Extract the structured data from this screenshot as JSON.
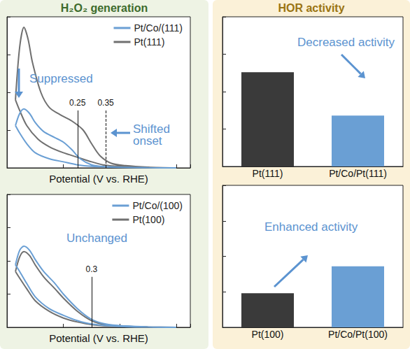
{
  "headers": [
    "H₂O₂ generation",
    "HOR activity"
  ],
  "chart_data": [
    {
      "type": "line",
      "xlabel": "Potential (V vs. RHE)",
      "xlim": [
        0,
        0.65
      ],
      "xticks": [
        0,
        0.2,
        0.4,
        0.6
      ],
      "ylim": [
        0,
        1
      ],
      "yticks": [
        0,
        0.25,
        0.5,
        0.75,
        1
      ],
      "tick_labels": false,
      "grid": false,
      "legend": "upper right",
      "series": [
        {
          "name": "Pt/Co/(111)",
          "color": "#6a9fd4",
          "x": [
            0.03,
            0.045,
            0.06,
            0.08,
            0.1,
            0.13,
            0.17,
            0.2,
            0.23,
            0.26,
            0.3,
            0.35,
            0.42,
            0.5,
            0.6,
            0.5,
            0.4,
            0.3,
            0.25,
            0.2,
            0.15,
            0.1,
            0.07,
            0.045,
            0.03
          ],
          "values": [
            0.28,
            0.36,
            0.39,
            0.36,
            0.3,
            0.24,
            0.2,
            0.17,
            0.12,
            0.06,
            0.02,
            0.008,
            0.003,
            0.001,
            0,
            0.001,
            0.003,
            0.01,
            0.02,
            0.04,
            0.06,
            0.1,
            0.16,
            0.23,
            0.28
          ]
        },
        {
          "name": "Pt(111)",
          "color": "#707070",
          "x": [
            0.03,
            0.045,
            0.06,
            0.075,
            0.09,
            0.12,
            0.15,
            0.19,
            0.23,
            0.27,
            0.3,
            0.33,
            0.37,
            0.42,
            0.5,
            0.6,
            0.5,
            0.4,
            0.34,
            0.3,
            0.25,
            0.2,
            0.15,
            0.11,
            0.07,
            0.045,
            0.03
          ],
          "values": [
            0.45,
            0.8,
            0.93,
            0.85,
            0.7,
            0.5,
            0.4,
            0.35,
            0.31,
            0.25,
            0.16,
            0.08,
            0.03,
            0.015,
            0.005,
            0,
            0.003,
            0.01,
            0.02,
            0.04,
            0.07,
            0.1,
            0.14,
            0.19,
            0.28,
            0.38,
            0.45
          ]
        }
      ],
      "markers": [
        {
          "value": 0.25,
          "line_style": "solid"
        },
        {
          "value": 0.35,
          "line_style": "dashed"
        }
      ],
      "annotations": [
        "Suppressed",
        "Shifted onset"
      ]
    },
    {
      "type": "line",
      "xlabel": "Potential (V vs. RHE)",
      "xlim": [
        0,
        0.65
      ],
      "xticks": [
        0,
        0.2,
        0.4,
        0.6
      ],
      "ylim": [
        0,
        1
      ],
      "yticks": [
        0,
        0.25,
        0.5,
        0.75,
        1
      ],
      "tick_labels": false,
      "grid": false,
      "legend": "upper right",
      "series": [
        {
          "name": "Pt/Co/(100)",
          "color": "#6a9fd4",
          "x": [
            0.03,
            0.045,
            0.06,
            0.08,
            0.1,
            0.13,
            0.17,
            0.2,
            0.25,
            0.3,
            0.35,
            0.42,
            0.5,
            0.6,
            0.5,
            0.4,
            0.3,
            0.25,
            0.2,
            0.15,
            0.1,
            0.07,
            0.045,
            0.03
          ],
          "values": [
            0.47,
            0.58,
            0.61,
            0.58,
            0.51,
            0.42,
            0.33,
            0.25,
            0.14,
            0.06,
            0.025,
            0.01,
            0.003,
            0,
            0.002,
            0.007,
            0.025,
            0.05,
            0.09,
            0.14,
            0.23,
            0.33,
            0.42,
            0.47
          ]
        },
        {
          "name": "Pt(100)",
          "color": "#707070",
          "x": [
            0.03,
            0.045,
            0.06,
            0.08,
            0.1,
            0.13,
            0.17,
            0.2,
            0.25,
            0.3,
            0.35,
            0.42,
            0.5,
            0.6,
            0.5,
            0.4,
            0.3,
            0.25,
            0.2,
            0.15,
            0.1,
            0.07,
            0.045,
            0.03
          ],
          "values": [
            0.42,
            0.53,
            0.57,
            0.54,
            0.47,
            0.38,
            0.29,
            0.22,
            0.12,
            0.05,
            0.02,
            0.008,
            0.003,
            0,
            0.002,
            0.006,
            0.02,
            0.04,
            0.07,
            0.12,
            0.2,
            0.29,
            0.37,
            0.42
          ]
        }
      ],
      "markers": [
        {
          "value": 0.3,
          "line_style": "solid"
        }
      ],
      "annotations": [
        "Unchanged"
      ]
    },
    {
      "type": "bar",
      "categories": [
        "Pt(111)",
        "Pt/Co/Pt(111)"
      ],
      "values": [
        0.63,
        0.34
      ],
      "colors": [
        "#3a3a3a",
        "#6a9fd4"
      ],
      "ylim": [
        0,
        1
      ],
      "yticks": [
        0,
        0.25,
        0.5,
        0.75,
        1
      ],
      "tick_labels": "x",
      "grid": false,
      "annotations": [
        "Decreased activity"
      ]
    },
    {
      "type": "bar",
      "categories": [
        "Pt(100)",
        "Pt/Co/Pt(100)"
      ],
      "values": [
        0.24,
        0.43
      ],
      "colors": [
        "#3a3a3a",
        "#6a9fd4"
      ],
      "ylim": [
        0,
        1
      ],
      "yticks": [
        0,
        0.25,
        0.5,
        0.75,
        1
      ],
      "tick_labels": "x",
      "grid": false,
      "annotations": [
        "Enhanced activity"
      ]
    }
  ]
}
